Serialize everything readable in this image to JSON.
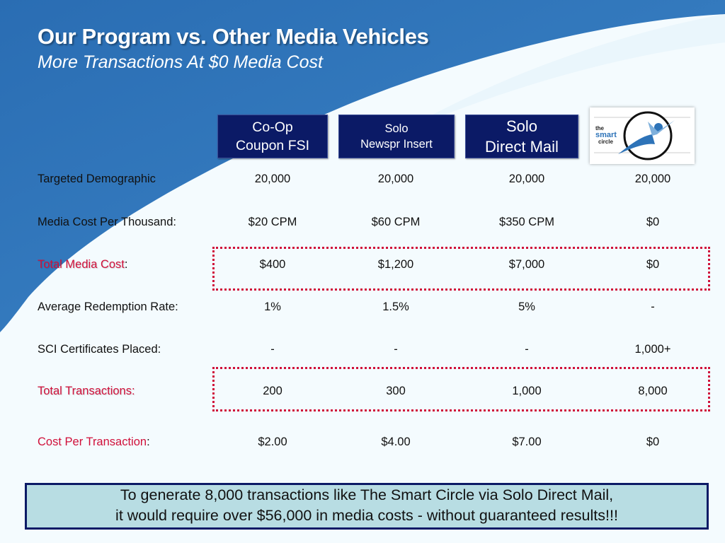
{
  "title": "Our Program vs. Other Media Vehicles",
  "subtitle": "More Transactions At $0 Media Cost",
  "columns": [
    {
      "line1": "Co-Op",
      "line2": "Coupon FSI"
    },
    {
      "line1": "Solo",
      "line2": "Newspr Insert"
    },
    {
      "line1": "Solo",
      "line2": "Direct Mail"
    }
  ],
  "logo": {
    "text": [
      "the",
      "smart",
      "circle"
    ],
    "icon": "smart-circle-logo"
  },
  "rows": [
    {
      "label": "Targeted Demographic",
      "suffix": "",
      "highlight": false,
      "values": [
        "20,000",
        "20,000",
        "20,000",
        "20,000"
      ]
    },
    {
      "label": "Media Cost Per Thousand:",
      "suffix": "",
      "highlight": false,
      "values": [
        "$20 CPM",
        "$60 CPM",
        "$350 CPM",
        "$0"
      ]
    },
    {
      "label": "Total Media Cost",
      "suffix": ":",
      "highlight": true,
      "values": [
        "$400",
        "$1,200",
        "$7,000",
        "$0"
      ]
    },
    {
      "label": "Average Redemption Rate:",
      "suffix": "",
      "highlight": false,
      "values": [
        "1%",
        "1.5%",
        "5%",
        "-"
      ]
    },
    {
      "label": "SCI Certificates Placed:",
      "suffix": "",
      "highlight": false,
      "values": [
        "-",
        "-",
        "-",
        "1,000+"
      ]
    },
    {
      "label": "Total Transactions:",
      "suffix": "",
      "highlight": true,
      "values": [
        "200",
        "300",
        "1,000",
        "8,000"
      ]
    },
    {
      "label": "Cost Per Transaction",
      "suffix": ":",
      "highlight": false,
      "values": [
        "$2.00",
        "$4.00",
        "$7.00",
        "$0"
      ]
    }
  ],
  "callout": {
    "line1": "To generate 8,000 transactions like The Smart Circle via Solo Direct Mail,",
    "line2": "it would require over $56,000 in media costs - without guaranteed results!!!"
  },
  "colors": {
    "header_bg": "#0b1a66",
    "accent_red": "#d0103a",
    "brand_blue": "#2d73b8",
    "callout_bg": "#b8dde3"
  }
}
